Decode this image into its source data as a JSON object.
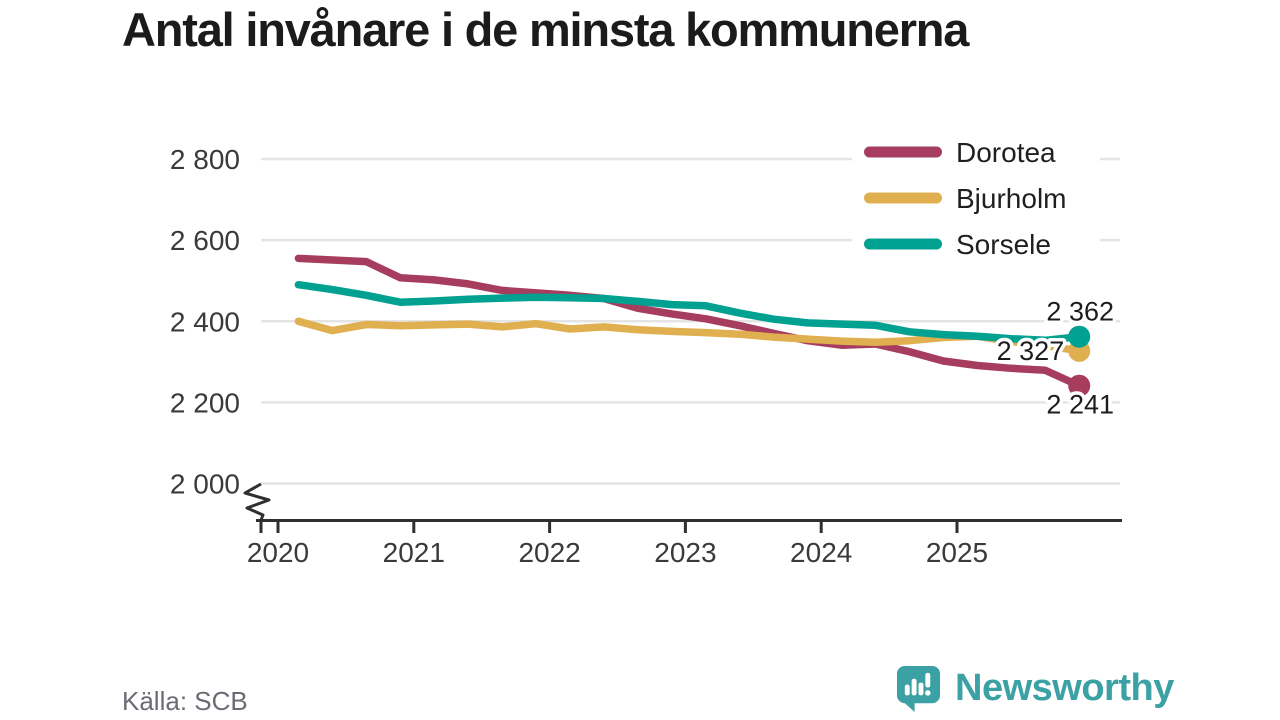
{
  "title": "Antal invånare i de minsta kommunerna",
  "footer": {
    "source": "Källa: SCB",
    "brand": "Newsworthy"
  },
  "colors": {
    "dorotea": "#a63d5f",
    "bjurholm": "#e0af4f",
    "sorsele": "#00a191",
    "axis": "#2f2f2f",
    "grid": "#e4e4e4",
    "tick_text": "#3a3a3a",
    "label_text": "#1d1d1d",
    "brand_teal": "#3ba1a4"
  },
  "chart_data": {
    "type": "line",
    "title": "Antal invånare i de minsta kommunerna",
    "source": "Källa: SCB",
    "legend_position": "top-right",
    "grid": "horizontal",
    "axis_break": true,
    "ylim": [
      2000,
      2800
    ],
    "xlim": [
      2020,
      2026
    ],
    "xticks": [
      2020,
      2021,
      2022,
      2023,
      2024,
      2025
    ],
    "yticks": [
      {
        "value": 2000,
        "label": "2 000"
      },
      {
        "value": 2200,
        "label": "2 200"
      },
      {
        "value": 2400,
        "label": "2 400"
      },
      {
        "value": 2600,
        "label": "2 600"
      },
      {
        "value": 2800,
        "label": "2 800"
      }
    ],
    "x": [
      2020.15,
      2020.4,
      2020.65,
      2020.9,
      2021.15,
      2021.4,
      2021.65,
      2021.9,
      2022.15,
      2022.4,
      2022.65,
      2022.9,
      2023.15,
      2023.4,
      2023.65,
      2023.9,
      2024.15,
      2024.4,
      2024.65,
      2024.9,
      2025.15,
      2025.4,
      2025.65,
      2025.9
    ],
    "series": [
      {
        "name": "Dorotea",
        "color": "#a63d5f",
        "end_label": "2 241",
        "end_value": 2241,
        "values": [
          2555,
          2551,
          2547,
          2507,
          2502,
          2492,
          2476,
          2470,
          2464,
          2456,
          2432,
          2418,
          2406,
          2389,
          2370,
          2352,
          2341,
          2344,
          2325,
          2302,
          2291,
          2284,
          2279,
          2241
        ]
      },
      {
        "name": "Bjurholm",
        "color": "#e0af4f",
        "end_label": "2 327",
        "end_value": 2327,
        "values": [
          2400,
          2377,
          2392,
          2389,
          2391,
          2393,
          2386,
          2394,
          2381,
          2386,
          2379,
          2375,
          2372,
          2368,
          2361,
          2356,
          2351,
          2348,
          2352,
          2360,
          2363,
          2350,
          2340,
          2327
        ]
      },
      {
        "name": "Sorsele",
        "color": "#00a191",
        "end_label": "2 362",
        "end_value": 2362,
        "values": [
          2490,
          2478,
          2464,
          2447,
          2450,
          2454,
          2457,
          2459,
          2458,
          2456,
          2449,
          2441,
          2438,
          2420,
          2405,
          2396,
          2393,
          2390,
          2374,
          2367,
          2363,
          2357,
          2353,
          2362
        ]
      }
    ]
  }
}
